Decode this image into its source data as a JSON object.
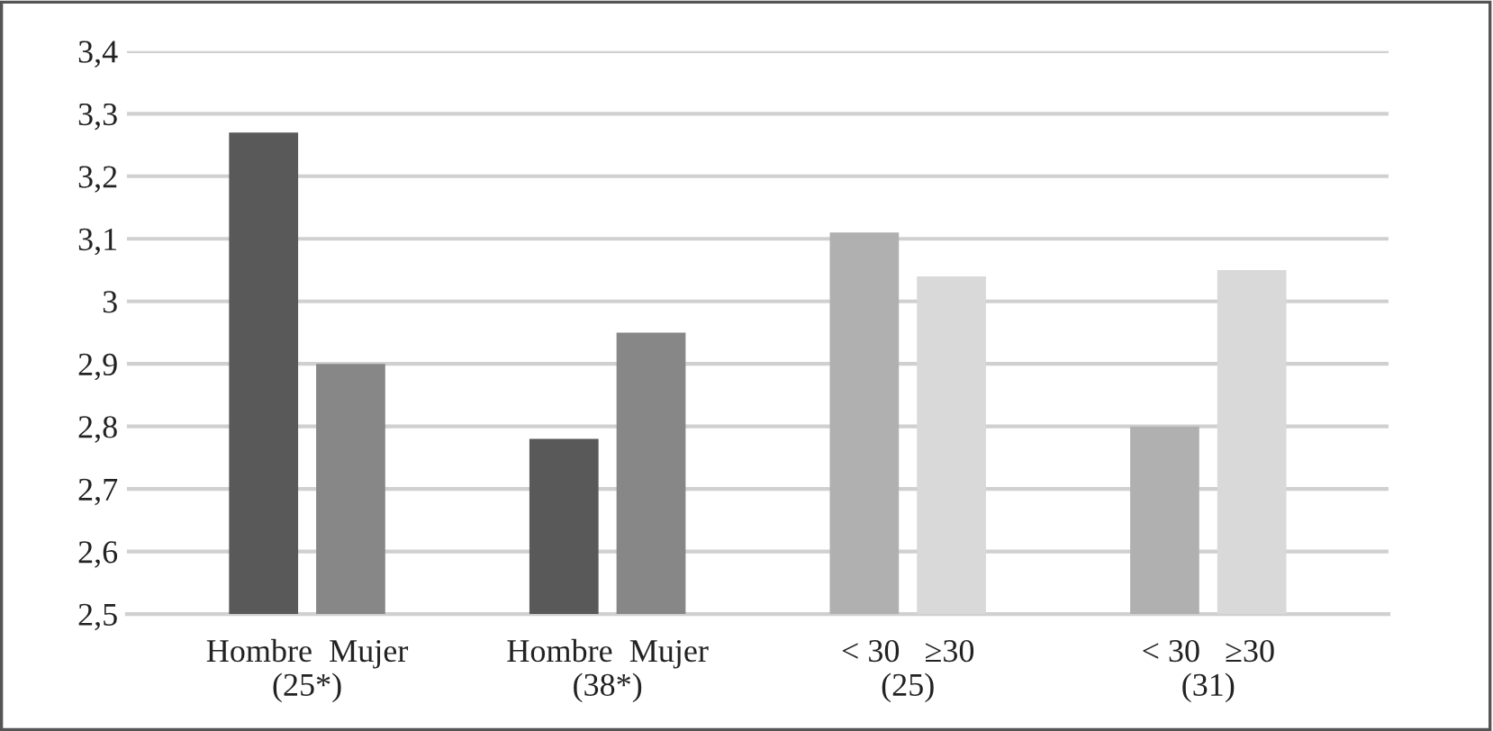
{
  "chart_data": {
    "type": "bar",
    "categories": [
      "Hombre  Mujer\n(25*)",
      "Hombre  Mujer\n(38*)",
      "< 30   ≥30\n(25)",
      "< 30   ≥30\n(31)"
    ],
    "series": [
      {
        "colors": [
          "#595959",
          "#595959",
          "#b0b0b0",
          "#b0b0b0"
        ],
        "values": [
          3.27,
          2.78,
          3.11,
          2.8
        ]
      },
      {
        "colors": [
          "#878787",
          "#878787",
          "#d9d9d9",
          "#d9d9d9"
        ],
        "values": [
          2.9,
          2.95,
          3.04,
          3.05
        ]
      }
    ],
    "ylim": [
      2.5,
      3.4
    ],
    "yticks": [
      {
        "value": 2.5,
        "label": "2,5"
      },
      {
        "value": 2.6,
        "label": "2,6"
      },
      {
        "value": 2.7,
        "label": "2,7"
      },
      {
        "value": 2.8,
        "label": "2,8"
      },
      {
        "value": 2.9,
        "label": "2,9"
      },
      {
        "value": 3,
        "label": "3"
      },
      {
        "value": 3.1,
        "label": "3,1"
      },
      {
        "value": 3.2,
        "label": "3,2"
      },
      {
        "value": 3.3,
        "label": "3,3"
      },
      {
        "value": 3.4,
        "label": "3,4"
      }
    ],
    "grid": "y",
    "legend": false
  }
}
